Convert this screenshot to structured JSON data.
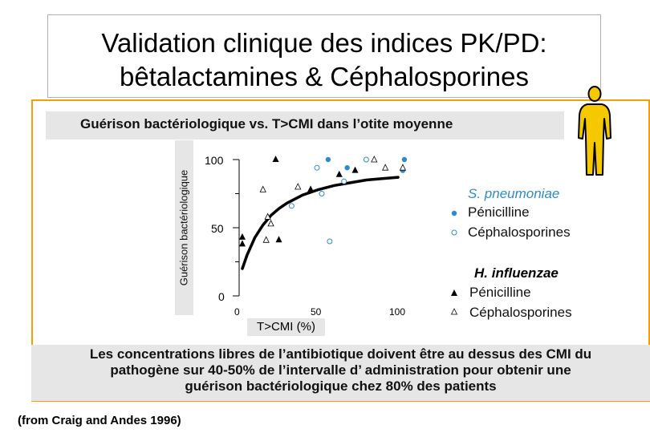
{
  "slide_title": {
    "line1": "Validation clinique des indices PK/PD:",
    "line2": "bêtalactamines & Céphalosporines"
  },
  "source": "(from Craig and Andes 1996)",
  "note": {
    "line1": "Les concentrations libres de l’antibiotique doivent être au dessus des CMI du",
    "line2": "pathogène sur 40-50% de l’intervalle d’ administration pour obtenir une",
    "line3": "guérison bactériologique chez 80% des patients"
  },
  "icons": {
    "person": "person-figure-icon"
  },
  "colors": {
    "accent_border": "#f0a000",
    "person_fill": "#f5c800",
    "pneumo_blue": "#2e8bc8",
    "band_gray": "#e6e6e6"
  },
  "chart_data": {
    "type": "scatter",
    "title": "Guérison bactériologique vs. T>CMI  dans l’otite moyenne",
    "xlabel": "T>CMI (%)",
    "ylabel": "Guérison bactériologique",
    "xlim": [
      0,
      110
    ],
    "ylim": [
      0,
      100
    ],
    "xticks": [
      "0",
      "50",
      "100"
    ],
    "yticks": [
      "0",
      "50",
      "100"
    ],
    "grid": false,
    "legend_position": "right",
    "legend": {
      "group1": "S. pneumoniae",
      "group2": "H. influenzae",
      "pen": "Pénicilline",
      "ceph": "Céphalosporines"
    },
    "series": [
      {
        "organism": "S. pneumoniae",
        "drug": "Pénicilline",
        "marker": "filled-circle",
        "x": [
          56,
          68,
          103,
          104
        ],
        "y": [
          100,
          94,
          92,
          100
        ]
      },
      {
        "organism": "S. pneumoniae",
        "drug": "Céphalosporines",
        "marker": "open-circle",
        "x": [
          49,
          80,
          66,
          52,
          33,
          57
        ],
        "y": [
          94,
          100,
          84,
          75,
          66,
          40
        ]
      },
      {
        "organism": "H. influenzae",
        "drug": "Pénicilline",
        "marker": "filled-triangle",
        "x": [
          23,
          45,
          73,
          63,
          2,
          2,
          25
        ],
        "y": [
          100,
          78,
          92,
          89,
          43,
          38,
          41
        ]
      },
      {
        "organism": "H. influenzae",
        "drug": "Céphalosporines",
        "marker": "open-triangle",
        "x": [
          85,
          92,
          103,
          37,
          15,
          20,
          18,
          17
        ],
        "y": [
          100,
          94,
          94,
          80,
          78,
          53,
          58,
          41
        ]
      }
    ],
    "curve": {
      "x": [
        2,
        5,
        10,
        15,
        20,
        25,
        30,
        40,
        50,
        60,
        70,
        80,
        90,
        100
      ],
      "y": [
        20,
        30,
        43,
        52,
        59,
        64,
        68,
        74,
        78,
        81,
        83,
        85,
        86,
        87
      ]
    }
  }
}
